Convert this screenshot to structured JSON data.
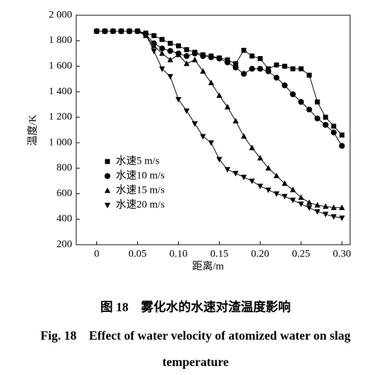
{
  "chart_data": {
    "type": "line",
    "y_label": "温度/K",
    "x_label": "距离/m",
    "caption_zh": "图 18　雾化水的水速对渣温度影响",
    "caption_en": "Fig. 18　Effect of water velocity of atomized water on slag temperature",
    "x": [
      0,
      0.01,
      0.02,
      0.03,
      0.04,
      0.05,
      0.06,
      0.07,
      0.08,
      0.09,
      0.1,
      0.11,
      0.12,
      0.13,
      0.14,
      0.15,
      0.16,
      0.17,
      0.18,
      0.19,
      0.2,
      0.21,
      0.22,
      0.23,
      0.24,
      0.25,
      0.26,
      0.27,
      0.28,
      0.29,
      0.3
    ],
    "series": [
      {
        "name": "水速5 m/s",
        "color": "#000000",
        "marker": "square",
        "values": [
          1875,
          1875,
          1875,
          1875,
          1875,
          1875,
          1860,
          1840,
          1810,
          1780,
          1760,
          1730,
          1710,
          1690,
          1680,
          1665,
          1650,
          1620,
          1725,
          1680,
          1660,
          1580,
          1610,
          1600,
          1580,
          1580,
          1530,
          1320,
          1200,
          1130,
          1060
        ]
      },
      {
        "name": "水速10 m/s",
        "color": "#000000",
        "marker": "circle",
        "values": [
          1875,
          1875,
          1875,
          1875,
          1875,
          1875,
          1850,
          1780,
          1740,
          1720,
          1700,
          1680,
          1700,
          1680,
          1670,
          1660,
          1630,
          1590,
          1540,
          1580,
          1580,
          1560,
          1510,
          1450,
          1380,
          1320,
          1260,
          1190,
          1140,
          1080,
          975
        ]
      },
      {
        "name": "水速15 m/s",
        "color": "#000000",
        "marker": "triangle-up",
        "values": [
          1875,
          1875,
          1875,
          1875,
          1875,
          1875,
          1840,
          1760,
          1700,
          1650,
          1690,
          1620,
          1650,
          1560,
          1470,
          1370,
          1280,
          1170,
          1050,
          960,
          880,
          800,
          740,
          680,
          630,
          570,
          530,
          510,
          500,
          490,
          490
        ]
      },
      {
        "name": "水速20 m/s",
        "color": "#000000",
        "marker": "triangle-down",
        "values": [
          1875,
          1875,
          1875,
          1875,
          1875,
          1875,
          1850,
          1720,
          1580,
          1520,
          1340,
          1250,
          1150,
          1050,
          1000,
          870,
          790,
          760,
          730,
          700,
          660,
          630,
          600,
          580,
          550,
          520,
          490,
          460,
          440,
          420,
          410
        ]
      }
    ],
    "xlim": [
      -0.025,
      0.31
    ],
    "xticks": [
      0,
      0.05,
      {
        "value": 0.1,
        "label": "0.10"
      },
      0.15,
      {
        "value": 0.2,
        "label": "0.20"
      },
      0.25,
      {
        "value": 0.3,
        "label": "0.30"
      }
    ],
    "ylim": [
      200,
      2000
    ],
    "yticks": [
      200,
      400,
      600,
      800,
      {
        "value": 1000,
        "label": "1 000"
      },
      {
        "value": 1200,
        "label": "1 200"
      },
      {
        "value": 1400,
        "label": "1 400"
      },
      {
        "value": 1600,
        "label": "1 600"
      },
      {
        "value": 1800,
        "label": "1 800"
      },
      {
        "value": 2000,
        "label": "2 000"
      }
    ],
    "legend": "lower left"
  }
}
